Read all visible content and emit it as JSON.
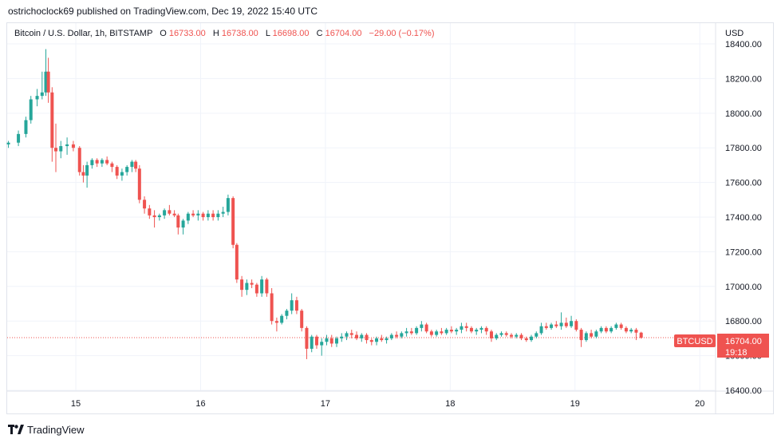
{
  "header": {
    "publisher_line": "ostrichoclock69 published on TradingView.com, Dec 19, 2022 15:40 UTC"
  },
  "legend": {
    "symbol": "Bitcoin / U.S. Dollar, 1h, BITSTAMP",
    "open_label": "O",
    "open": "16733.00",
    "high_label": "H",
    "high": "16738.00",
    "low_label": "L",
    "low": "16698.00",
    "close_label": "C",
    "close": "16704.00",
    "change": "−29.00 (−0.17%)"
  },
  "price_scale": {
    "currency": "USD"
  },
  "last_price": {
    "ticker": "BTCUSD",
    "price": "16704.00",
    "countdown": "19:18"
  },
  "footer": {
    "brand": "TradingView"
  },
  "colors": {
    "up": "#26a69a",
    "down": "#ef5350",
    "grid": "#f0f3fa",
    "text": "#131722"
  },
  "chart_data": {
    "type": "candlestick",
    "symbol": "BTCUSD",
    "interval": "1h",
    "y_tick_labels": [
      "16400.00",
      "16600.00",
      "16800.00",
      "17000.00",
      "17200.00",
      "17400.00",
      "17600.00",
      "17800.00",
      "18000.00",
      "18200.00",
      "18400.00"
    ],
    "x_tick_labels": [
      "15",
      "16",
      "17",
      "18",
      "19",
      "20"
    ],
    "ylim": [
      16400,
      18520
    ],
    "xlim": [
      14.45,
      20.12
    ],
    "last_close": 16704,
    "candles": [
      {
        "t": 14.46,
        "o": 17820,
        "h": 17840,
        "l": 17800,
        "c": 17830
      },
      {
        "t": 14.54,
        "o": 17830,
        "h": 17900,
        "l": 17810,
        "c": 17880
      },
      {
        "t": 14.6,
        "o": 17880,
        "h": 17980,
        "l": 17860,
        "c": 17960
      },
      {
        "t": 14.64,
        "o": 17960,
        "h": 18100,
        "l": 17940,
        "c": 18080
      },
      {
        "t": 14.69,
        "o": 18080,
        "h": 18140,
        "l": 18040,
        "c": 18100
      },
      {
        "t": 14.73,
        "o": 18100,
        "h": 18240,
        "l": 18080,
        "c": 18120
      },
      {
        "t": 14.76,
        "o": 18120,
        "h": 18370,
        "l": 18100,
        "c": 18240
      },
      {
        "t": 14.78,
        "o": 18240,
        "h": 18320,
        "l": 18060,
        "c": 18120
      },
      {
        "t": 14.81,
        "o": 18120,
        "h": 18150,
        "l": 17720,
        "c": 17800
      },
      {
        "t": 14.84,
        "o": 17800,
        "h": 17940,
        "l": 17660,
        "c": 17780
      },
      {
        "t": 14.88,
        "o": 17780,
        "h": 17840,
        "l": 17740,
        "c": 17810
      },
      {
        "t": 14.93,
        "o": 17810,
        "h": 17860,
        "l": 17760,
        "c": 17820
      },
      {
        "t": 14.98,
        "o": 17820,
        "h": 17840,
        "l": 17780,
        "c": 17800
      },
      {
        "t": 15.03,
        "o": 17800,
        "h": 17810,
        "l": 17640,
        "c": 17660
      },
      {
        "t": 15.06,
        "o": 17660,
        "h": 17700,
        "l": 17600,
        "c": 17640
      },
      {
        "t": 15.09,
        "o": 17640,
        "h": 17720,
        "l": 17570,
        "c": 17700
      },
      {
        "t": 15.13,
        "o": 17700,
        "h": 17740,
        "l": 17680,
        "c": 17730
      },
      {
        "t": 15.17,
        "o": 17730,
        "h": 17740,
        "l": 17690,
        "c": 17710
      },
      {
        "t": 15.21,
        "o": 17710,
        "h": 17740,
        "l": 17690,
        "c": 17730
      },
      {
        "t": 15.25,
        "o": 17730,
        "h": 17750,
        "l": 17700,
        "c": 17710
      },
      {
        "t": 15.29,
        "o": 17710,
        "h": 17720,
        "l": 17660,
        "c": 17690
      },
      {
        "t": 15.33,
        "o": 17690,
        "h": 17700,
        "l": 17620,
        "c": 17640
      },
      {
        "t": 15.37,
        "o": 17640,
        "h": 17680,
        "l": 17610,
        "c": 17660
      },
      {
        "t": 15.41,
        "o": 17660,
        "h": 17700,
        "l": 17640,
        "c": 17690
      },
      {
        "t": 15.45,
        "o": 17690,
        "h": 17730,
        "l": 17660,
        "c": 17720
      },
      {
        "t": 15.48,
        "o": 17720,
        "h": 17730,
        "l": 17660,
        "c": 17680
      },
      {
        "t": 15.51,
        "o": 17680,
        "h": 17700,
        "l": 17480,
        "c": 17500
      },
      {
        "t": 15.55,
        "o": 17500,
        "h": 17520,
        "l": 17420,
        "c": 17450
      },
      {
        "t": 15.59,
        "o": 17450,
        "h": 17470,
        "l": 17390,
        "c": 17410
      },
      {
        "t": 15.63,
        "o": 17410,
        "h": 17440,
        "l": 17340,
        "c": 17400
      },
      {
        "t": 15.67,
        "o": 17400,
        "h": 17420,
        "l": 17380,
        "c": 17410
      },
      {
        "t": 15.71,
        "o": 17410,
        "h": 17450,
        "l": 17390,
        "c": 17440
      },
      {
        "t": 15.75,
        "o": 17440,
        "h": 17470,
        "l": 17410,
        "c": 17420
      },
      {
        "t": 15.79,
        "o": 17420,
        "h": 17440,
        "l": 17400,
        "c": 17410
      },
      {
        "t": 15.82,
        "o": 17410,
        "h": 17420,
        "l": 17300,
        "c": 17340
      },
      {
        "t": 15.86,
        "o": 17340,
        "h": 17390,
        "l": 17300,
        "c": 17380
      },
      {
        "t": 15.9,
        "o": 17380,
        "h": 17430,
        "l": 17360,
        "c": 17420
      },
      {
        "t": 15.94,
        "o": 17420,
        "h": 17440,
        "l": 17400,
        "c": 17410
      },
      {
        "t": 15.98,
        "o": 17410,
        "h": 17440,
        "l": 17380,
        "c": 17420
      },
      {
        "t": 16.02,
        "o": 17420,
        "h": 17430,
        "l": 17380,
        "c": 17400
      },
      {
        "t": 16.06,
        "o": 17400,
        "h": 17440,
        "l": 17380,
        "c": 17420
      },
      {
        "t": 16.1,
        "o": 17420,
        "h": 17440,
        "l": 17380,
        "c": 17400
      },
      {
        "t": 16.14,
        "o": 17400,
        "h": 17440,
        "l": 17380,
        "c": 17420
      },
      {
        "t": 16.18,
        "o": 17420,
        "h": 17460,
        "l": 17400,
        "c": 17430
      },
      {
        "t": 16.22,
        "o": 17430,
        "h": 17530,
        "l": 17410,
        "c": 17510
      },
      {
        "t": 16.26,
        "o": 17510,
        "h": 17520,
        "l": 17220,
        "c": 17240
      },
      {
        "t": 16.29,
        "o": 17240,
        "h": 17250,
        "l": 17020,
        "c": 17040
      },
      {
        "t": 16.33,
        "o": 17040,
        "h": 17060,
        "l": 16940,
        "c": 16980
      },
      {
        "t": 16.37,
        "o": 16980,
        "h": 17040,
        "l": 16950,
        "c": 17020
      },
      {
        "t": 16.41,
        "o": 17020,
        "h": 17040,
        "l": 16990,
        "c": 17010
      },
      {
        "t": 16.45,
        "o": 17010,
        "h": 17020,
        "l": 16940,
        "c": 16960
      },
      {
        "t": 16.49,
        "o": 16960,
        "h": 17060,
        "l": 16940,
        "c": 17040
      },
      {
        "t": 16.53,
        "o": 17040,
        "h": 17050,
        "l": 16940,
        "c": 16960
      },
      {
        "t": 16.57,
        "o": 16960,
        "h": 16990,
        "l": 16780,
        "c": 16800
      },
      {
        "t": 16.61,
        "o": 16800,
        "h": 16820,
        "l": 16740,
        "c": 16790
      },
      {
        "t": 16.65,
        "o": 16790,
        "h": 16840,
        "l": 16780,
        "c": 16830
      },
      {
        "t": 16.69,
        "o": 16830,
        "h": 16870,
        "l": 16810,
        "c": 16860
      },
      {
        "t": 16.73,
        "o": 16860,
        "h": 16960,
        "l": 16840,
        "c": 16920
      },
      {
        "t": 16.77,
        "o": 16920,
        "h": 16940,
        "l": 16840,
        "c": 16860
      },
      {
        "t": 16.81,
        "o": 16860,
        "h": 16870,
        "l": 16740,
        "c": 16760
      },
      {
        "t": 16.85,
        "o": 16760,
        "h": 16770,
        "l": 16580,
        "c": 16640
      },
      {
        "t": 16.89,
        "o": 16640,
        "h": 16720,
        "l": 16620,
        "c": 16710
      },
      {
        "t": 16.93,
        "o": 16710,
        "h": 16720,
        "l": 16640,
        "c": 16660
      },
      {
        "t": 16.97,
        "o": 16660,
        "h": 16700,
        "l": 16600,
        "c": 16680
      },
      {
        "t": 17.01,
        "o": 16680,
        "h": 16720,
        "l": 16660,
        "c": 16700
      },
      {
        "t": 17.05,
        "o": 16700,
        "h": 16720,
        "l": 16650,
        "c": 16670
      },
      {
        "t": 17.09,
        "o": 16670,
        "h": 16710,
        "l": 16650,
        "c": 16700
      },
      {
        "t": 17.13,
        "o": 16700,
        "h": 16730,
        "l": 16680,
        "c": 16710
      },
      {
        "t": 17.17,
        "o": 16710,
        "h": 16740,
        "l": 16690,
        "c": 16730
      },
      {
        "t": 17.21,
        "o": 16730,
        "h": 16750,
        "l": 16700,
        "c": 16720
      },
      {
        "t": 17.25,
        "o": 16720,
        "h": 16740,
        "l": 16690,
        "c": 16700
      },
      {
        "t": 17.29,
        "o": 16700,
        "h": 16730,
        "l": 16680,
        "c": 16720
      },
      {
        "t": 17.33,
        "o": 16720,
        "h": 16730,
        "l": 16670,
        "c": 16690
      },
      {
        "t": 17.37,
        "o": 16690,
        "h": 16700,
        "l": 16660,
        "c": 16680
      },
      {
        "t": 17.41,
        "o": 16680,
        "h": 16710,
        "l": 16660,
        "c": 16700
      },
      {
        "t": 17.45,
        "o": 16700,
        "h": 16720,
        "l": 16680,
        "c": 16690
      },
      {
        "t": 17.49,
        "o": 16690,
        "h": 16710,
        "l": 16670,
        "c": 16700
      },
      {
        "t": 17.53,
        "o": 16700,
        "h": 16730,
        "l": 16690,
        "c": 16720
      },
      {
        "t": 17.57,
        "o": 16720,
        "h": 16740,
        "l": 16700,
        "c": 16710
      },
      {
        "t": 17.61,
        "o": 16710,
        "h": 16740,
        "l": 16700,
        "c": 16730
      },
      {
        "t": 17.65,
        "o": 16730,
        "h": 16760,
        "l": 16710,
        "c": 16740
      },
      {
        "t": 17.69,
        "o": 16740,
        "h": 16760,
        "l": 16720,
        "c": 16730
      },
      {
        "t": 17.73,
        "o": 16730,
        "h": 16770,
        "l": 16720,
        "c": 16760
      },
      {
        "t": 17.77,
        "o": 16760,
        "h": 16800,
        "l": 16740,
        "c": 16780
      },
      {
        "t": 17.81,
        "o": 16780,
        "h": 16790,
        "l": 16730,
        "c": 16740
      },
      {
        "t": 17.85,
        "o": 16740,
        "h": 16750,
        "l": 16710,
        "c": 16720
      },
      {
        "t": 17.89,
        "o": 16720,
        "h": 16750,
        "l": 16710,
        "c": 16740
      },
      {
        "t": 17.93,
        "o": 16740,
        "h": 16760,
        "l": 16720,
        "c": 16730
      },
      {
        "t": 17.97,
        "o": 16730,
        "h": 16760,
        "l": 16720,
        "c": 16750
      },
      {
        "t": 18.01,
        "o": 16750,
        "h": 16770,
        "l": 16730,
        "c": 16740
      },
      {
        "t": 18.05,
        "o": 16740,
        "h": 16760,
        "l": 16720,
        "c": 16750
      },
      {
        "t": 18.09,
        "o": 16750,
        "h": 16790,
        "l": 16730,
        "c": 16770
      },
      {
        "t": 18.13,
        "o": 16770,
        "h": 16790,
        "l": 16740,
        "c": 16760
      },
      {
        "t": 18.17,
        "o": 16760,
        "h": 16770,
        "l": 16730,
        "c": 16740
      },
      {
        "t": 18.21,
        "o": 16740,
        "h": 16760,
        "l": 16720,
        "c": 16750
      },
      {
        "t": 18.25,
        "o": 16750,
        "h": 16770,
        "l": 16730,
        "c": 16760
      },
      {
        "t": 18.29,
        "o": 16760,
        "h": 16770,
        "l": 16720,
        "c": 16740
      },
      {
        "t": 18.33,
        "o": 16740,
        "h": 16750,
        "l": 16680,
        "c": 16700
      },
      {
        "t": 18.37,
        "o": 16700,
        "h": 16730,
        "l": 16690,
        "c": 16720
      },
      {
        "t": 18.41,
        "o": 16720,
        "h": 16740,
        "l": 16710,
        "c": 16730
      },
      {
        "t": 18.45,
        "o": 16730,
        "h": 16740,
        "l": 16710,
        "c": 16720
      },
      {
        "t": 18.49,
        "o": 16720,
        "h": 16730,
        "l": 16700,
        "c": 16710
      },
      {
        "t": 18.53,
        "o": 16710,
        "h": 16730,
        "l": 16700,
        "c": 16720
      },
      {
        "t": 18.57,
        "o": 16720,
        "h": 16730,
        "l": 16690,
        "c": 16700
      },
      {
        "t": 18.61,
        "o": 16700,
        "h": 16710,
        "l": 16680,
        "c": 16690
      },
      {
        "t": 18.65,
        "o": 16690,
        "h": 16720,
        "l": 16680,
        "c": 16710
      },
      {
        "t": 18.69,
        "o": 16710,
        "h": 16740,
        "l": 16700,
        "c": 16730
      },
      {
        "t": 18.73,
        "o": 16730,
        "h": 16790,
        "l": 16720,
        "c": 16770
      },
      {
        "t": 18.77,
        "o": 16770,
        "h": 16790,
        "l": 16750,
        "c": 16760
      },
      {
        "t": 18.81,
        "o": 16760,
        "h": 16790,
        "l": 16750,
        "c": 16780
      },
      {
        "t": 18.85,
        "o": 16780,
        "h": 16800,
        "l": 16760,
        "c": 16770
      },
      {
        "t": 18.89,
        "o": 16770,
        "h": 16850,
        "l": 16750,
        "c": 16790
      },
      {
        "t": 18.93,
        "o": 16790,
        "h": 16820,
        "l": 16760,
        "c": 16770
      },
      {
        "t": 18.97,
        "o": 16770,
        "h": 16830,
        "l": 16760,
        "c": 16800
      },
      {
        "t": 19.01,
        "o": 16800,
        "h": 16810,
        "l": 16740,
        "c": 16750
      },
      {
        "t": 19.05,
        "o": 16750,
        "h": 16760,
        "l": 16650,
        "c": 16690
      },
      {
        "t": 19.09,
        "o": 16690,
        "h": 16740,
        "l": 16680,
        "c": 16730
      },
      {
        "t": 19.13,
        "o": 16730,
        "h": 16750,
        "l": 16700,
        "c": 16710
      },
      {
        "t": 19.17,
        "o": 16710,
        "h": 16750,
        "l": 16700,
        "c": 16740
      },
      {
        "t": 19.21,
        "o": 16740,
        "h": 16770,
        "l": 16730,
        "c": 16760
      },
      {
        "t": 19.25,
        "o": 16760,
        "h": 16770,
        "l": 16730,
        "c": 16740
      },
      {
        "t": 19.29,
        "o": 16740,
        "h": 16770,
        "l": 16730,
        "c": 16760
      },
      {
        "t": 19.33,
        "o": 16760,
        "h": 16790,
        "l": 16750,
        "c": 16780
      },
      {
        "t": 19.37,
        "o": 16780,
        "h": 16790,
        "l": 16750,
        "c": 16760
      },
      {
        "t": 19.41,
        "o": 16760,
        "h": 16770,
        "l": 16730,
        "c": 16740
      },
      {
        "t": 19.45,
        "o": 16740,
        "h": 16760,
        "l": 16730,
        "c": 16750
      },
      {
        "t": 19.49,
        "o": 16750,
        "h": 16760,
        "l": 16690,
        "c": 16733
      },
      {
        "t": 19.53,
        "o": 16733,
        "h": 16738,
        "l": 16698,
        "c": 16704
      }
    ]
  }
}
